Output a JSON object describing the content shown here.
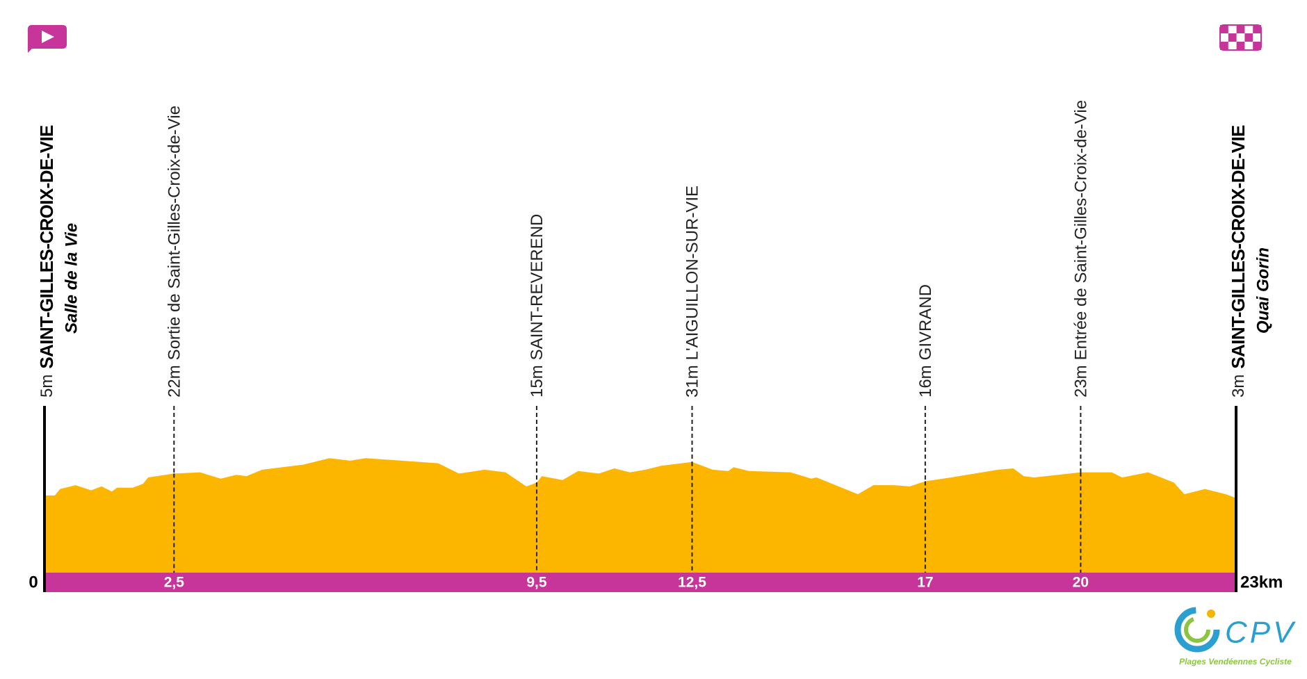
{
  "chart_data": {
    "type": "area",
    "color": "#FDB600",
    "band_color": "#C7349A",
    "xlim": [
      0,
      23
    ],
    "ylim": [
      -55,
      100
    ],
    "x": [
      0,
      0.2,
      0.3,
      0.6,
      0.9,
      1.1,
      1.3,
      1.4,
      1.7,
      1.9,
      2.0,
      2.5,
      3.0,
      3.4,
      3.7,
      3.9,
      4.2,
      5.0,
      5.5,
      5.9,
      6.2,
      6.9,
      7.6,
      8.0,
      8.5,
      8.9,
      9.3,
      9.5,
      9.6,
      10.0,
      10.3,
      10.7,
      11.0,
      11.3,
      11.6,
      11.9,
      12.5,
      12.9,
      13.2,
      13.3,
      13.6,
      14.4,
      14.8,
      14.9,
      15.7,
      16.0,
      16.4,
      16.7,
      17.0,
      17.5,
      18.4,
      18.7,
      18.9,
      19.1,
      20.0,
      20.6,
      20.8,
      21.3,
      21.8,
      22.0,
      22.4,
      22.8,
      23.0
    ],
    "values": [
      5,
      5,
      10,
      13,
      9,
      12,
      8,
      11,
      11,
      14,
      19,
      22,
      23,
      18,
      21,
      20,
      25,
      29,
      34,
      32,
      34,
      32,
      30,
      22,
      25,
      23,
      12,
      15,
      20,
      17,
      24,
      22,
      26,
      23,
      25,
      28,
      31,
      25,
      24,
      27,
      24,
      23,
      18,
      19,
      6,
      13,
      13,
      12,
      16,
      19,
      25,
      26,
      20,
      19,
      23,
      23,
      19,
      23,
      15,
      6,
      10,
      6,
      3
    ],
    "waypoints": [
      {
        "km": 0,
        "km_label": "0",
        "altitude": 5,
        "altitude_label": "5m",
        "name": "SAINT-GILLES-CROIX-DE-VIE",
        "place": "Salle de la Vie"
      },
      {
        "km": 2.5,
        "km_label": "2,5",
        "altitude": 22,
        "altitude_label": "22m",
        "name": "Sortie de Saint-Gilles-Croix-de-Vie"
      },
      {
        "km": 9.5,
        "km_label": "9,5",
        "altitude": 15,
        "altitude_label": "15m",
        "name": "SAINT-REVEREND"
      },
      {
        "km": 12.5,
        "km_label": "12,5",
        "altitude": 31,
        "altitude_label": "31m",
        "name": "L'AIGUILLON-SUR-VIE"
      },
      {
        "km": 17,
        "km_label": "17",
        "altitude": 16,
        "altitude_label": "16m",
        "name": "GIVRAND"
      },
      {
        "km": 20,
        "km_label": "20",
        "altitude": 23,
        "altitude_label": "23m",
        "name": "Entrée de Saint-Gilles-Croix-de-Vie"
      },
      {
        "km": 23,
        "km_label": "23km",
        "altitude": 3,
        "altitude_label": "3m",
        "name": "SAINT-GILLES-CROIX-DE-VIE",
        "place": "Quai Gorin"
      }
    ]
  },
  "logo": {
    "text": "CPV",
    "tagline": "Plages Vendéennes Cycliste"
  }
}
